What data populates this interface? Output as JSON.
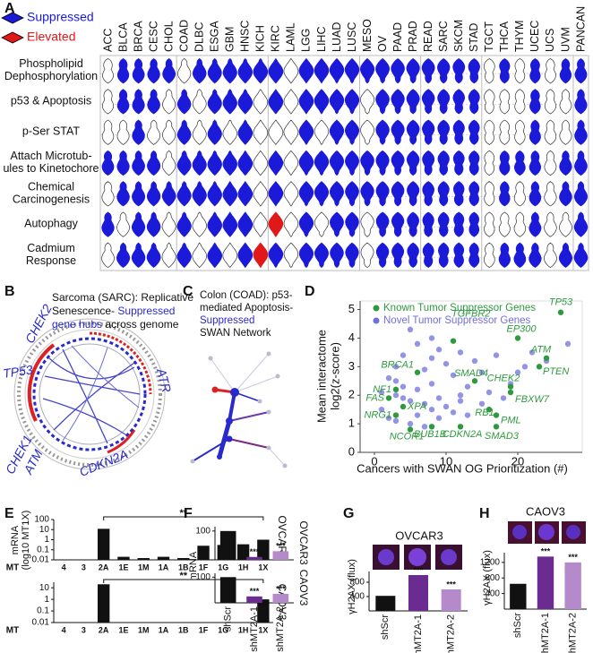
{
  "figure": {
    "panel_labels": [
      "A",
      "B",
      "C",
      "D",
      "E",
      "F",
      "G",
      "H"
    ],
    "circos": {
      "title_lines": [
        [
          "Sarcoma (SARC): Replicative"
        ],
        [
          "Senescence- ",
          "Suppressed"
        ],
        [
          "gene hubs",
          " across genome"
        ]
      ],
      "genes": [
        "CHEK2",
        "TP53",
        "ATR",
        "CHEK1",
        "ATM",
        "CDKN2A"
      ]
    },
    "network": {
      "title_lines": [
        "Colon (COAD): p53-",
        "mediated Apoptosis-",
        "Suppressed",
        "SWAN Network"
      ]
    }
  },
  "chart_data": [
    {
      "type": "violin_grid",
      "legend": [
        {
          "name": "Suppressed",
          "color": "#1a1ad8"
        },
        {
          "name": "Elevated",
          "color": "#e01818"
        }
      ],
      "categories": [
        "ACC",
        "BLCA",
        "BRCA",
        "CESC",
        "CHOL",
        "COAD",
        "DLBC",
        "ESGA",
        "GBM",
        "HNSC",
        "KICH",
        "KIRC",
        "LAML",
        "LGG",
        "LIHC",
        "LUAD",
        "LUSC",
        "MESO",
        "OV",
        "PAAD",
        "PRAD",
        "READ",
        "SARC",
        "SKCM",
        "STAD",
        "TGCT",
        "THCA",
        "THYM",
        "UCEC",
        "UCS",
        "UVM",
        "PANCAN"
      ],
      "rows": [
        [
          "Phospholipid",
          "Dephosphorylation"
        ],
        [
          "p53 & Apoptosis"
        ],
        [
          "p-Ser STAT"
        ],
        [
          "Attach Microtub-",
          "ules to Kinetochore"
        ],
        [
          "Chemical",
          "Carcinogenesis"
        ],
        [
          "Autophagy"
        ],
        [
          "Cadmium",
          "Response"
        ]
      ],
      "cells": [
        "WBBBBWBBBBBBWBBBBBBBBBBBBWBWBWBB",
        "WBBBWBWBBBWBWBBBBWBBBBBBBWWWBWWB",
        "WWBWWBWBWBWWWBWBBWBBBBBBBWWWBWWB",
        "BBBBWBBBBBWBWBBBBBBBBBBBBWBBBWBB",
        "WBBBBBBBBBWBWBBBBBBBBBBBBWBWBWBB",
        "BWBBWBWBBBWRWBWBBWBBBBBBBWWWBWWB",
        "WBBBWBWBWBRBWBBBBWBBBBBBBWBBBWBB"
      ],
      "palette": {
        "B": "#1a1ad8",
        "R": "#e01818",
        "W": "#ffffff"
      }
    },
    {
      "type": "scatter",
      "xlabel": "Cancers with SWAN OG Prioritization (#)",
      "ylabel": [
        "Mean interactome",
        "log2(z-score)"
      ],
      "xlim": [
        -2,
        29
      ],
      "ylim": [
        0,
        5.3
      ],
      "xticks": [
        0,
        10,
        20
      ],
      "yticks": [
        0,
        1,
        2,
        3,
        4,
        5
      ],
      "series": [
        {
          "name": "Known Tumor Suppressor Genes",
          "color": "#2e9a3e",
          "labels": [
            "TP53",
            "EP300",
            "ATM",
            "PTEN",
            "TGFBR2",
            "BRCA1",
            "SMAD4",
            "CHEK2",
            "FBXW7",
            "NF1",
            "FAS",
            "XPA",
            "NRG1",
            "RB1",
            "PML",
            "NCOR1",
            "BUB1B",
            "CDKN2A",
            "SMAD3"
          ],
          "x": [
            26,
            20,
            24,
            23,
            11,
            6,
            14,
            19,
            19,
            3,
            2,
            4,
            3,
            16,
            17,
            5,
            8,
            12,
            17
          ],
          "values": [
            4.9,
            4.0,
            3.3,
            3.0,
            3.9,
            2.8,
            2.5,
            2.3,
            2.1,
            2.2,
            1.9,
            1.6,
            1.3,
            1.5,
            1.3,
            0.8,
            0.9,
            0.9,
            0.9
          ]
        },
        {
          "name": "Novel Tumor Suppressor Genes",
          "color": "#6f6fe0",
          "x": [
            1,
            1,
            2,
            2,
            3,
            3,
            3,
            4,
            4,
            5,
            5,
            5,
            6,
            6,
            6,
            7,
            7,
            7,
            8,
            8,
            8,
            9,
            9,
            9,
            10,
            10,
            11,
            11,
            12,
            12,
            13,
            13,
            14,
            15,
            15,
            16,
            17,
            18,
            19,
            20,
            21,
            22,
            24,
            27,
            3,
            4,
            8,
            12
          ],
          "values": [
            2.1,
            1.5,
            2.6,
            1.2,
            3.0,
            2.0,
            1.1,
            3.4,
            2.3,
            4.3,
            1.8,
            1.0,
            3.8,
            2.2,
            1.3,
            2.9,
            1.7,
            0.9,
            4.0,
            2.4,
            1.5,
            3.6,
            1.9,
            1.2,
            3.1,
            1.6,
            2.7,
            1.4,
            3.5,
            2.0,
            2.3,
            1.3,
            3.2,
            2.8,
            1.7,
            2.1,
            3.4,
            1.9,
            2.4,
            2.8,
            3.0,
            3.5,
            3.2,
            3.8,
            2.5,
            1.9,
            3.3,
            1.8
          ]
        }
      ]
    },
    {
      "type": "bar",
      "log_scale": true,
      "side_title": "OVCAR3",
      "ylabel": [
        "mRNA",
        "(log10 MT1X)"
      ],
      "xlabel": "MT",
      "categories": [
        "4",
        "3",
        "2A",
        "1E",
        "1M",
        "1A",
        "1B",
        "1F",
        "1G",
        "1H",
        "1X"
      ],
      "values": [
        null,
        null,
        12,
        0.02,
        0.015,
        0.02,
        0.015,
        0.25,
        0.3,
        0.35,
        1
      ],
      "color": "#111111",
      "ylim": [
        0.01,
        100
      ],
      "yticks": [
        0.01,
        0.1,
        1,
        10,
        100
      ],
      "bracket": {
        "label": "**",
        "from": "2A",
        "to": "1X"
      }
    },
    {
      "type": "bar",
      "log_scale": true,
      "side_title": "CAOV3",
      "xlabel": "MT",
      "categories": [
        "4",
        "3",
        "2A",
        "1E",
        "1M",
        "1A",
        "1B",
        "1F",
        "1G",
        "1H",
        "1X"
      ],
      "values": [
        null,
        null,
        20,
        null,
        null,
        null,
        null,
        null,
        null,
        null,
        1
      ],
      "color": "#111111",
      "ylim": [
        0.01,
        30
      ],
      "yticks": [
        0.01,
        0.1,
        1,
        10
      ],
      "bracket": {
        "label": "**",
        "from": "2A",
        "to": "1X"
      }
    },
    {
      "type": "bar",
      "side_title": "OVCAR3",
      "ylabel": [
        "mRNA"
      ],
      "values": [
        100,
        10,
        30
      ],
      "colors": [
        "#111111",
        "#6b2c91",
        "#b48acb"
      ],
      "ylim": [
        0,
        115
      ],
      "yticks": [
        100
      ],
      "significance": [
        null,
        "***",
        "***"
      ]
    },
    {
      "type": "bar",
      "side_title": "CAOV3",
      "categories": [
        "shScr",
        "shMT2A-1",
        "shMT2A-2"
      ],
      "values": [
        100,
        25,
        35
      ],
      "colors": [
        "#111111",
        "#6b2c91",
        "#b48acb"
      ],
      "ylim": [
        0,
        115
      ],
      "yticks": [
        100
      ],
      "significance": [
        null,
        "***",
        "***"
      ]
    },
    {
      "type": "bar",
      "title": "OVCAR3",
      "ylabel": [
        "γH2AX (flux)"
      ],
      "categories": [
        "shScr",
        "shMT2A-1",
        "shMT2A-2"
      ],
      "values": [
        420,
        1000,
        600
      ],
      "colors": [
        "#111111",
        "#6b2c91",
        "#b48acb"
      ],
      "ylim": [
        0,
        1100
      ],
      "yticks": [
        400,
        800
      ],
      "significance": [
        null,
        "***",
        "***"
      ]
    },
    {
      "type": "bar",
      "title": "CAOV3",
      "ylabel": [
        "γH2AX (flux)"
      ],
      "categories": [
        "shScr",
        "shMT2A-1",
        "shMT2A-2"
      ],
      "values": [
        650,
        1350,
        1200
      ],
      "colors": [
        "#111111",
        "#6b2c91",
        "#b48acb"
      ],
      "ylim": [
        0,
        1450
      ],
      "yticks": [
        400,
        800,
        1200
      ],
      "significance": [
        null,
        "***",
        "***"
      ]
    }
  ]
}
